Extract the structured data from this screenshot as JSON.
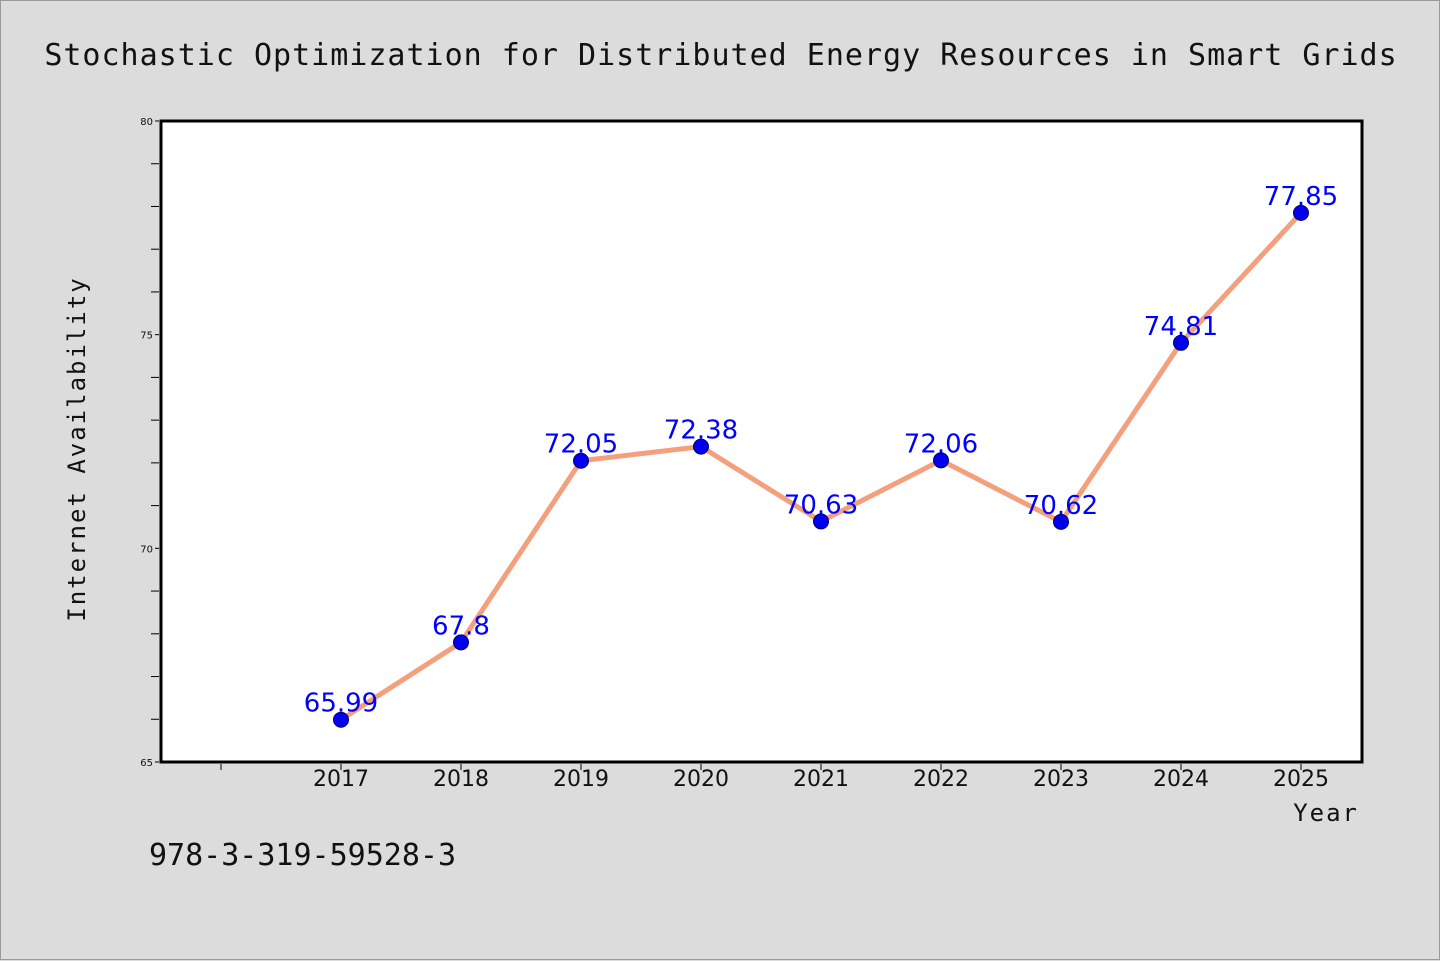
{
  "chart_data": {
    "type": "line",
    "title": "Stochastic Optimization for Distributed Energy Resources in Smart Grids",
    "xlabel": "Year",
    "ylabel": "Internet Availability",
    "categories": [
      "2017",
      "2018",
      "2019",
      "2020",
      "2021",
      "2022",
      "2023",
      "2024",
      "2025"
    ],
    "values": [
      65.99,
      67.8,
      72.05,
      72.38,
      70.63,
      72.06,
      70.62,
      74.81,
      77.85
    ],
    "data_labels": [
      "65.99",
      "67.8",
      "72.05",
      "72.38",
      "70.63",
      "72.06",
      "70.62",
      "74.81",
      "77.85"
    ],
    "ylim": [
      65,
      80
    ],
    "yticks": [
      "65",
      "70",
      "75",
      "80"
    ],
    "grid": false,
    "colors": {
      "line": "#f4a07c",
      "marker": "#0000ee",
      "label": "#0000ff"
    }
  },
  "footer": {
    "isbn": "978-3-319-59528-3"
  }
}
